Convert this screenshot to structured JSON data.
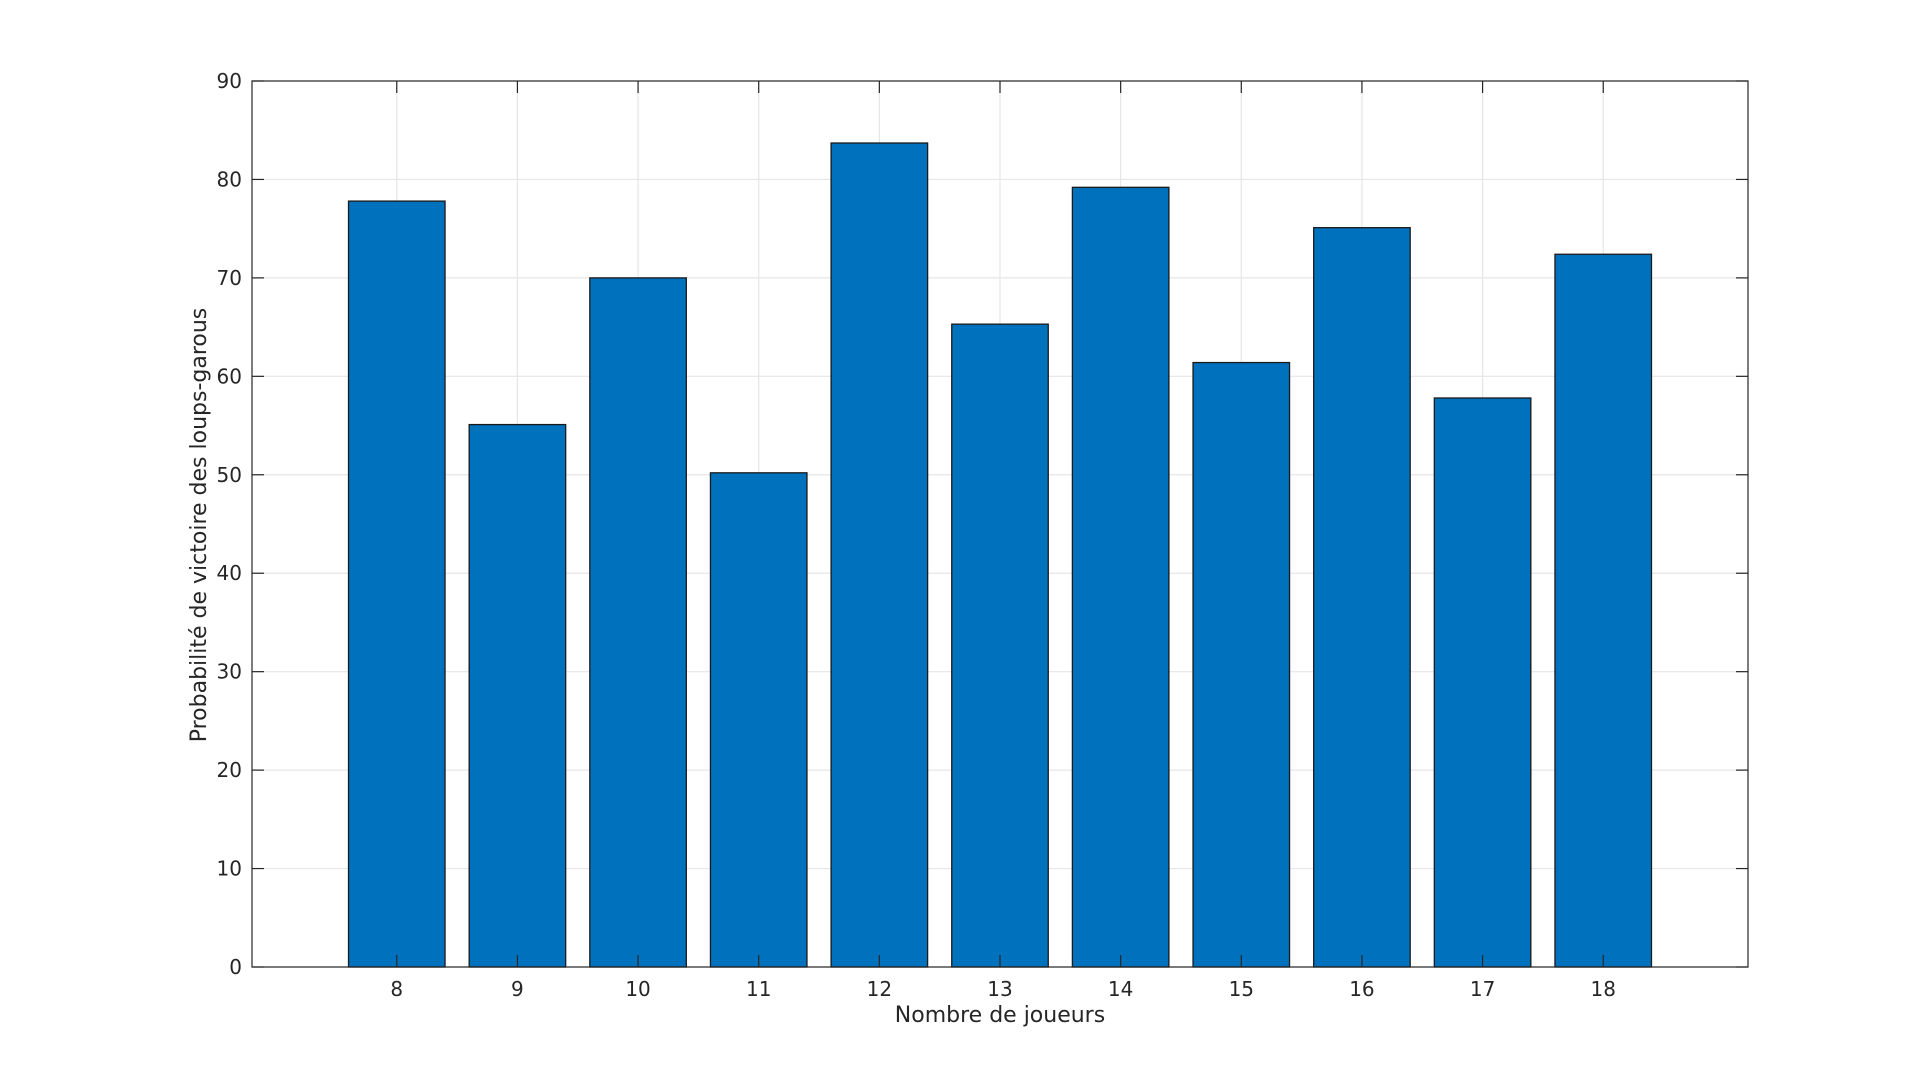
{
  "chart_data": {
    "type": "bar",
    "title": "",
    "xlabel": "Nombre de joueurs",
    "ylabel": "Probabilité de victoire des loups-garous",
    "categories": [
      "8",
      "9",
      "10",
      "11",
      "12",
      "13",
      "14",
      "15",
      "16",
      "17",
      "18"
    ],
    "values": [
      77.8,
      55.1,
      70.0,
      50.2,
      83.7,
      65.3,
      79.2,
      61.4,
      75.1,
      57.8,
      72.4
    ],
    "ylim": [
      0,
      90
    ],
    "yticks": [
      0,
      10,
      20,
      30,
      40,
      50,
      60,
      70,
      80,
      90
    ],
    "xlim": [
      6.8,
      19.2
    ],
    "grid": true,
    "colors": {
      "bar_fill": "#0072bd",
      "bar_stroke": "#1a1a1a",
      "grid": "#e6e6e6",
      "axis": "#262626"
    }
  }
}
